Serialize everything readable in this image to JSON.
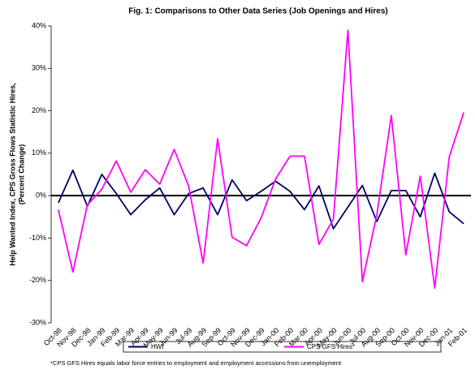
{
  "chart_data": {
    "type": "line",
    "title": "Fig. 1:  Comparisons to Other Data Series (Job Openings and Hires)",
    "ylabel": [
      "Help Wanted Index, CPS Gross Flows Statistic Hires,",
      "(Percent Change)"
    ],
    "note": "*CPS GFS Hires equals labor force entries to employment and employment accessions from unemployment",
    "categories": [
      "Oct-98",
      "Nov-98",
      "Dec-98",
      "Jan-99",
      "Feb-99",
      "Mar-99",
      "Apr-99",
      "May-99",
      "Jun-99",
      "Jul-99",
      "Aug-99",
      "Sep-99",
      "Oct-99",
      "Nov-99",
      "Dec-99",
      "Jan-00",
      "Feb-00",
      "Mar-00",
      "Apr-00",
      "May-00",
      "Jun-00",
      "Jul-00",
      "Aug-00",
      "Sep-00",
      "Oct-00",
      "Nov-00",
      "Dec-00",
      "Jan-01",
      "Feb-01"
    ],
    "series": [
      {
        "name": "HWI",
        "color": "#000066",
        "values": [
          -1.7,
          6,
          -2.5,
          5,
          0.5,
          -4.5,
          -1,
          1.8,
          -4.5,
          0.5,
          1.8,
          -4.5,
          3.7,
          -1.2,
          1,
          3.4,
          1,
          -3.3,
          2.3,
          -7.8,
          -2.7,
          2.4,
          -6.1,
          1.2,
          1.2,
          -5,
          5.3,
          -3.8,
          -6.6
        ]
      },
      {
        "name": "CPS GFS Hires*",
        "color": "#ff00ff",
        "values": [
          -3.3,
          -18,
          -2.2,
          1.5,
          8.2,
          0.8,
          6.1,
          2.7,
          10.9,
          2.2,
          -15.9,
          13.4,
          -9.8,
          -11.8,
          -5.3,
          3.9,
          9.3,
          9.3,
          -11.5,
          -5.5,
          39,
          -20.3,
          -4.5,
          18.9,
          -14,
          4.6,
          -21.8,
          9.1,
          19.6
        ]
      }
    ],
    "ylim": [
      -30,
      40
    ],
    "yticks": [
      {
        "value": -30,
        "label": "-30%"
      },
      {
        "value": -20,
        "label": "-20%"
      },
      {
        "value": -10,
        "label": "-10%"
      },
      {
        "value": 0,
        "label": "0%"
      },
      {
        "value": 10,
        "label": "10%"
      },
      {
        "value": 20,
        "label": "20%"
      },
      {
        "value": 30,
        "label": "30%"
      },
      {
        "value": 40,
        "label": "40%"
      }
    ],
    "grid": false
  }
}
